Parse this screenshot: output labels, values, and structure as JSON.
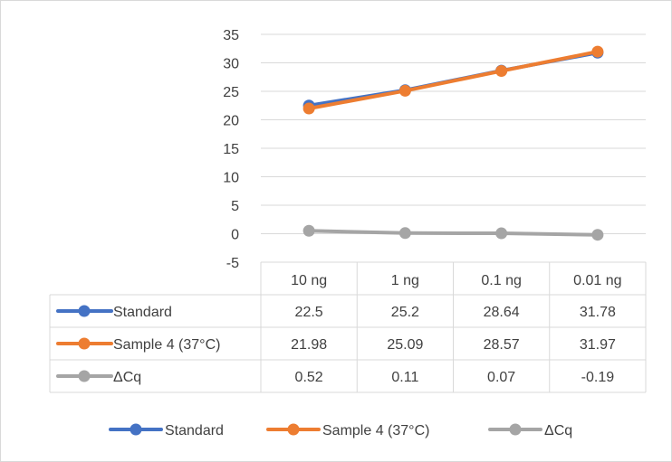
{
  "chart_data": {
    "type": "line",
    "categories": [
      "10 ng",
      "1 ng",
      "0.1 ng",
      "0.01 ng"
    ],
    "yticks": [
      35,
      30,
      25,
      20,
      15,
      10,
      5,
      0,
      -5
    ],
    "ylim": [
      -5,
      35
    ],
    "grid": true,
    "legend_position": "bottom",
    "data_table": true,
    "series": [
      {
        "name": "Standard",
        "color": "#4472C4",
        "values": [
          22.5,
          25.2,
          28.64,
          31.78
        ],
        "labels": [
          "22.5",
          "25.2",
          "28.64",
          "31.78"
        ]
      },
      {
        "name": "Sample 4 (37°C)",
        "color": "#ED7D31",
        "values": [
          21.98,
          25.09,
          28.57,
          31.97
        ],
        "labels": [
          "21.98",
          "25.09",
          "28.57",
          "31.97"
        ]
      },
      {
        "name": "ΔCq",
        "color": "#A5A5A5",
        "values": [
          0.52,
          0.11,
          0.07,
          -0.19
        ],
        "labels": [
          "0.52",
          "0.11",
          "0.07",
          "-0.19"
        ]
      }
    ]
  }
}
